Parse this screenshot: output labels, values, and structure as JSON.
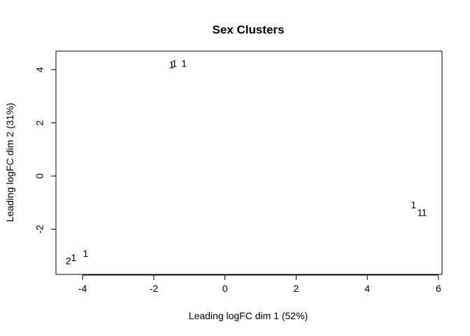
{
  "chart_data": {
    "type": "scatter",
    "title": "Sex Clusters",
    "xlabel": "Leading logFC dim 1 (52%)",
    "ylabel": "Leading logFC dim 2 (31%)",
    "xlim": [
      -4.75,
      6.1
    ],
    "ylim": [
      -3.7,
      4.7
    ],
    "xticks": [
      -4,
      -2,
      0,
      2,
      4,
      6
    ],
    "yticks": [
      -2,
      0,
      2,
      4
    ],
    "xtick_labels": [
      "-4",
      "-2",
      "0",
      "2",
      "4",
      "6"
    ],
    "ytick_labels": [
      "-2",
      "0",
      "2",
      "4"
    ],
    "grid": false,
    "points": [
      {
        "x": -1.5,
        "y": 4.15,
        "label": "1"
      },
      {
        "x": -1.42,
        "y": 4.2,
        "label": "1"
      },
      {
        "x": -1.15,
        "y": 4.2,
        "label": "1"
      },
      {
        "x": -4.4,
        "y": -3.22,
        "label": "2"
      },
      {
        "x": -4.25,
        "y": -3.1,
        "label": "1"
      },
      {
        "x": -3.92,
        "y": -2.95,
        "label": "1"
      },
      {
        "x": 5.3,
        "y": -1.12,
        "label": "1"
      },
      {
        "x": 5.48,
        "y": -1.4,
        "label": "1"
      },
      {
        "x": 5.6,
        "y": -1.4,
        "label": "1"
      }
    ]
  }
}
